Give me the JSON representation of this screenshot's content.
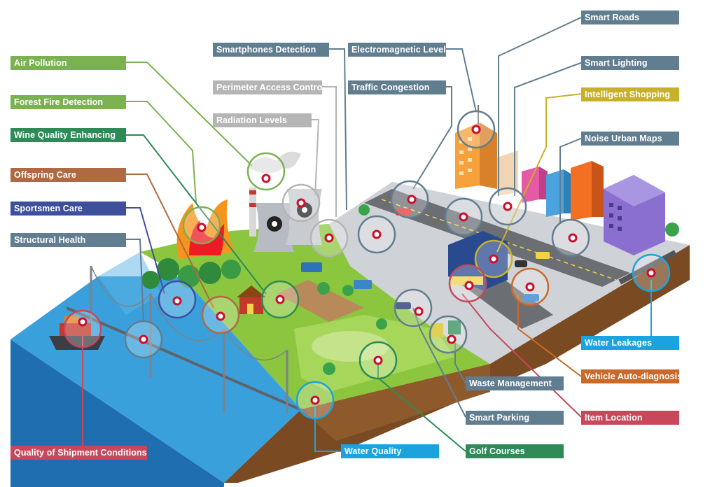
{
  "colors": {
    "green": "#7bb251",
    "dark_green": "#2e8b57",
    "slate": "#617d90",
    "light_gray": "#b5b5b5",
    "brown": "#b06a43",
    "navy": "#3e4f9c",
    "olive_yellow": "#c8b12a",
    "cyan": "#1aa3de",
    "orange": "#c9692a",
    "crimson": "#c8475b",
    "water": "#2f8fd0",
    "ground": "#8a5a2c",
    "grass": "#8cc63f",
    "street": "#c9ccd0",
    "sensor_ring": "#c8102e"
  },
  "labels": {
    "air_pollution": "Air Pollution",
    "forest_fire": "Forest Fire Detection",
    "wine_quality": "Wine Quality Enhancing",
    "offspring_care": "Offspring Care",
    "sportsmen_care": "Sportsmen Care",
    "structural_health": "Structural Health",
    "quality_shipment": "Quality of Shipment Conditions",
    "smartphones_detection": "Smartphones Detection",
    "perimeter_access": "Perimeter Access Control",
    "radiation_levels": "Radiation Levels",
    "electromagnetic_levels": "Electromagnetic Levels",
    "traffic_congestion": "Traffic Congestion",
    "smart_roads": "Smart Roads",
    "smart_lighting": "Smart Lighting",
    "intelligent_shopping": "Intelligent Shopping",
    "noise_urban_maps": "Noise Urban Maps",
    "water_leakages": "Water Leakages",
    "vehicle_autodiagnosis": "Vehicle Auto-diagnosis",
    "waste_management": "Waste Management",
    "item_location": "Item Location",
    "smart_parking": "Smart Parking",
    "golf_courses": "Golf Courses",
    "water_quality": "Water Quality"
  }
}
